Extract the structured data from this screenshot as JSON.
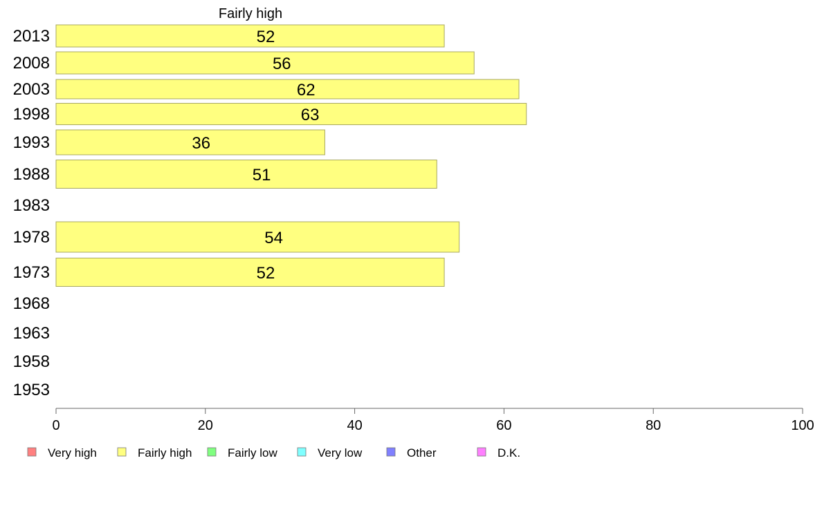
{
  "chart_data": {
    "type": "bar",
    "orientation": "horizontal",
    "title": "Fairly high",
    "xlabel": "",
    "ylabel": "",
    "xlim": [
      0,
      100
    ],
    "x_ticks": [
      0,
      20,
      40,
      60,
      80,
      100
    ],
    "grid": false,
    "categories": [
      "2013",
      "2008",
      "2003",
      "1998",
      "1993",
      "1988",
      "1983",
      "1978",
      "1973",
      "1968",
      "1963",
      "1958",
      "1953"
    ],
    "series": [
      {
        "name": "Fairly high",
        "color": "#ffff80",
        "values": [
          52,
          56,
          62,
          63,
          36,
          51,
          null,
          54,
          52,
          null,
          null,
          null,
          null
        ],
        "labels": [
          "52",
          "56",
          "62",
          "63",
          "36",
          "51",
          "",
          "54",
          "52",
          "",
          "",
          "",
          ""
        ]
      }
    ],
    "legend": {
      "position": "bottom",
      "entries": [
        {
          "label": "Very high",
          "color": "#ff8080"
        },
        {
          "label": "Fairly high",
          "color": "#ffff80"
        },
        {
          "label": "Fairly low",
          "color": "#80ff80"
        },
        {
          "label": "Very low",
          "color": "#80ffff"
        },
        {
          "label": "Other",
          "color": "#8080ff"
        },
        {
          "label": "D.K.",
          "color": "#ff80ff"
        }
      ]
    }
  }
}
